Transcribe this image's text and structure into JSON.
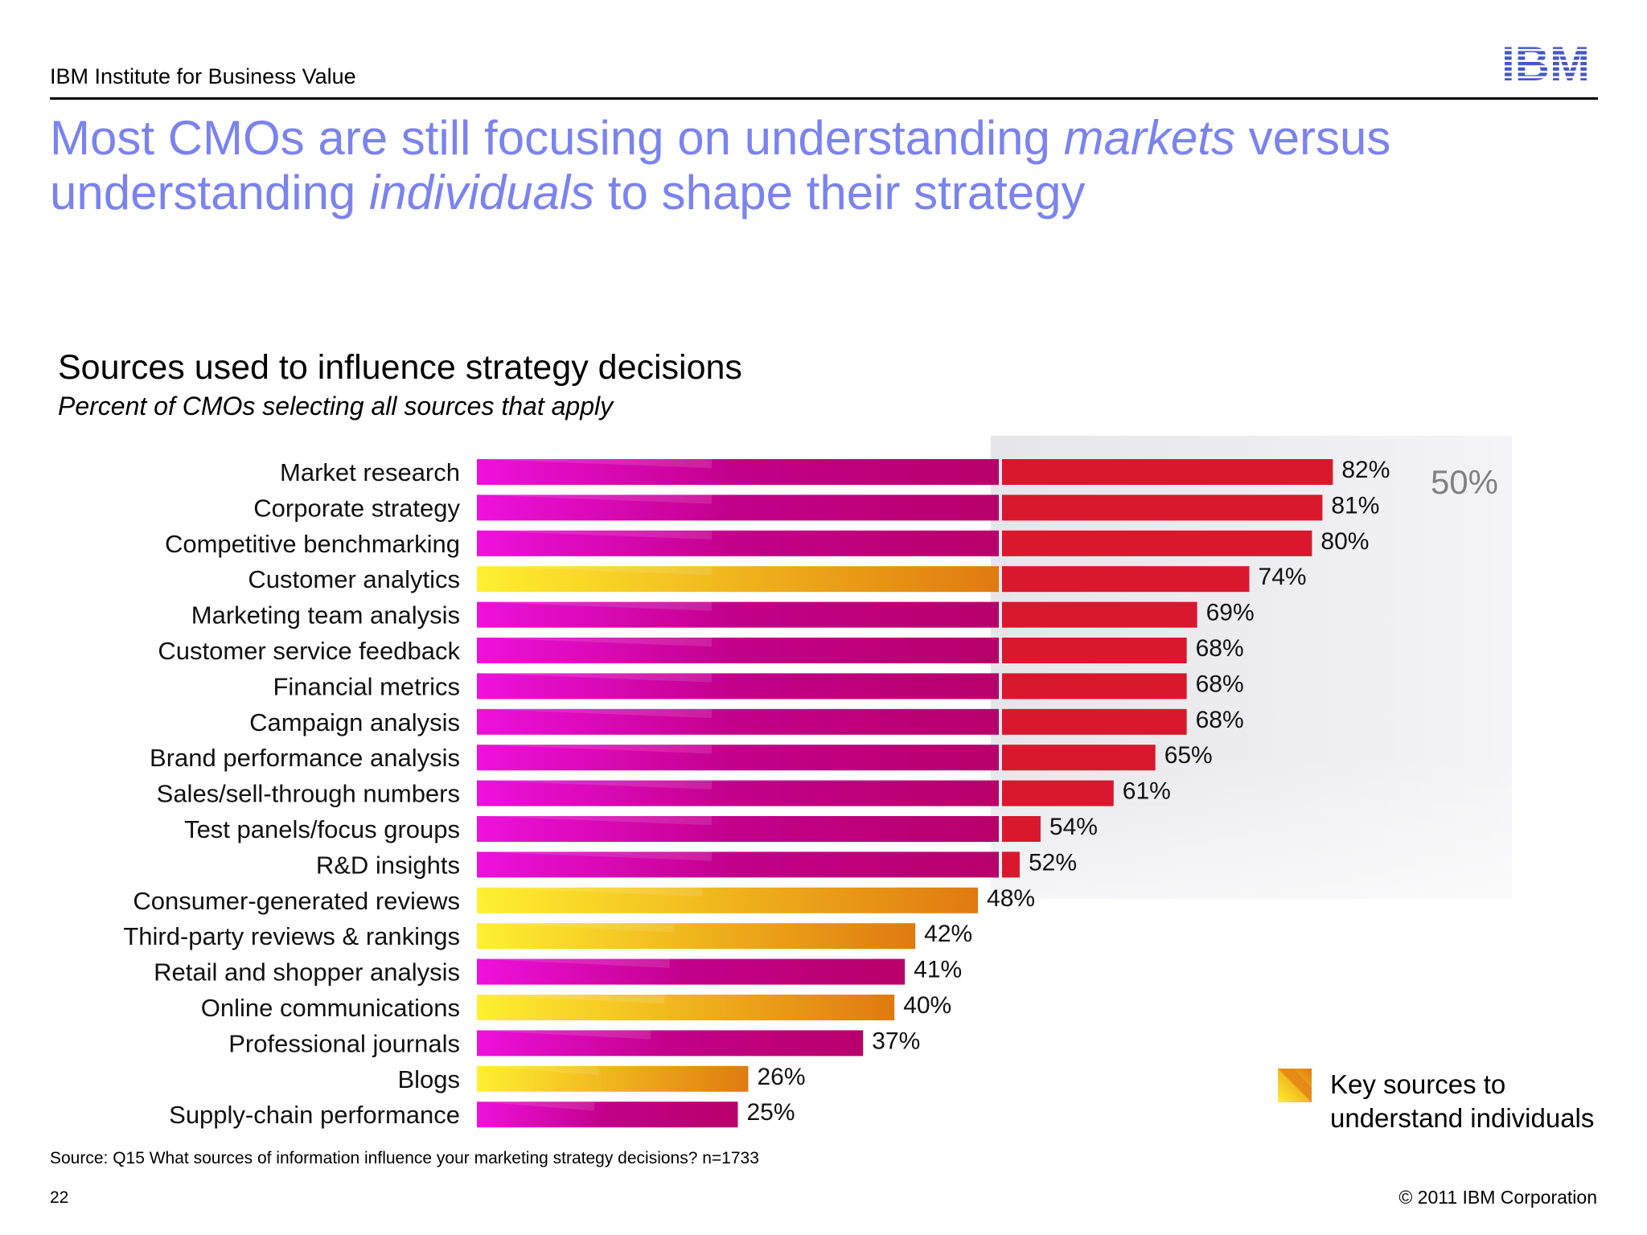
{
  "header": {
    "org": "IBM Institute for Business Value",
    "logo_text": "IBM"
  },
  "title": {
    "part1": "Most CMOs are still focusing on understanding ",
    "em1": "markets",
    "part2": " versus understanding ",
    "em2": "individuals",
    "part3": " to shape their strategy"
  },
  "chart_data": {
    "type": "bar",
    "orientation": "horizontal",
    "title": "Sources used to influence strategy decisions",
    "subtitle": "Percent of CMOs selecting all sources that apply",
    "threshold_label": "50%",
    "threshold_value": 50,
    "categories": [
      "Market research",
      "Corporate strategy",
      "Competitive benchmarking",
      "Customer analytics",
      "Marketing team analysis",
      "Customer service feedback",
      "Financial metrics",
      "Campaign analysis",
      "Brand performance analysis",
      "Sales/sell-through numbers",
      "Test panels/focus groups",
      "R&D insights",
      "Consumer-generated reviews",
      "Third-party reviews & rankings",
      "Retail and shopper analysis",
      "Online communications",
      "Professional journals",
      "Blogs",
      "Supply-chain performance"
    ],
    "values": [
      82,
      81,
      80,
      74,
      69,
      68,
      68,
      68,
      65,
      61,
      54,
      52,
      48,
      42,
      41,
      40,
      37,
      26,
      25
    ],
    "value_labels": [
      "82%",
      "81%",
      "80%",
      "74%",
      "69%",
      "68%",
      "68%",
      "68%",
      "65%",
      "61%",
      "54%",
      "52%",
      "48%",
      "42%",
      "41%",
      "40%",
      "37%",
      "26%",
      "25%"
    ],
    "key_individual_source": [
      false,
      false,
      false,
      true,
      false,
      false,
      false,
      false,
      false,
      false,
      false,
      false,
      true,
      true,
      false,
      true,
      false,
      true,
      false
    ],
    "xlim": [
      0,
      100
    ],
    "grid": false,
    "legend_placement": "bottom-right",
    "colors": {
      "market_start": "#ee11dd",
      "market_end": "#b8006a",
      "individual_start": "#fff030",
      "individual_end": "#e07a10",
      "above_threshold": "#d9182d",
      "threshold_band": "#ececef",
      "threshold_label": "#808080"
    }
  },
  "legend": {
    "label": "Key sources to understand individuals"
  },
  "footer": {
    "source": "Source:  Q15  What sources of information influence your marketing strategy decisions? n=1733",
    "page": "22",
    "copyright": "© 2011 IBM Corporation"
  }
}
